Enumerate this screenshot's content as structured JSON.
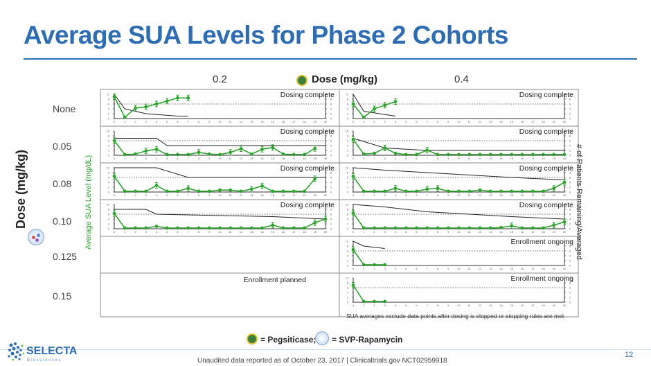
{
  "title": "Average SUA Levels for Phase 2 Cohorts",
  "header": {
    "col_left": "0.2",
    "dose_label": "Dose (mg/kg)",
    "col_right": "0.4"
  },
  "rows": [
    "None",
    "0.05",
    "0.08",
    "0.10",
    "0.125",
    "0.15"
  ],
  "y_axis_title": "Dose (mg/kg)",
  "y_axis_sub": "Average SUA Level (mg/dL)",
  "y_axis_right": "# of Patients Remaining/Averaged",
  "footnote": "SUA averages exclude data points after dosing is stopped or stopping rules are met",
  "legend": {
    "pegsiticase": "= Pegsiticase;",
    "svp": "= SVP-Rapamycin"
  },
  "logo_text": "SELECTA",
  "logo_sub": "B i o s c i e n c e s",
  "unaudited": "Unaudited data reported as of October 23, 2017 | Clinicaltrials.gov NCT02959918",
  "page_number": "12",
  "colors": {
    "title": "#2e6db4",
    "series": "#2ea32e",
    "patients": "#222222"
  },
  "chart_data": {
    "type": "line",
    "x_ticks": [
      "0",
      "1",
      "2",
      "3",
      "4",
      "5",
      "6",
      "7",
      "8",
      "9",
      "10",
      "11",
      "12",
      "13",
      "14",
      "15",
      "16",
      "17",
      "18",
      "19",
      "20"
    ],
    "xlim": [
      0,
      20
    ],
    "ylim_sua": [
      0,
      10
    ],
    "ylim_patients": [
      0,
      10
    ],
    "y_ticks": [
      "0",
      "2",
      "4",
      "6",
      "8",
      "10"
    ],
    "ref_line": 6,
    "panels": [
      {
        "row": 0,
        "col": 0,
        "status": "Dosing complete",
        "sua": [
          [
            0,
            9
          ],
          [
            1,
            0.5
          ],
          [
            2,
            4.3
          ],
          [
            3,
            4.8
          ],
          [
            4,
            6
          ],
          [
            5,
            7.2
          ],
          [
            6,
            8.5
          ],
          [
            7,
            8.5
          ]
        ],
        "patients": [
          [
            0,
            10
          ],
          [
            1,
            4
          ],
          [
            3,
            2
          ],
          [
            6,
            1
          ],
          [
            7,
            1
          ]
        ]
      },
      {
        "row": 0,
        "col": 1,
        "status": "Dosing complete",
        "sua": [
          [
            0,
            6
          ],
          [
            1,
            0.5
          ],
          [
            2,
            4
          ],
          [
            3,
            5.5
          ],
          [
            4,
            7
          ]
        ],
        "patients": [
          [
            0,
            10
          ],
          [
            1,
            3
          ],
          [
            4,
            1
          ]
        ]
      },
      {
        "row": 1,
        "col": 0,
        "status": "Dosing complete",
        "sua": [
          [
            0,
            6
          ],
          [
            1,
            0.3
          ],
          [
            2,
            0.5
          ],
          [
            3,
            1.8
          ],
          [
            4,
            2.5
          ],
          [
            5,
            0.3
          ],
          [
            6,
            0.3
          ],
          [
            7,
            0.3
          ],
          [
            8,
            1.2
          ],
          [
            9,
            0.5
          ],
          [
            10,
            0.3
          ],
          [
            11,
            1.2
          ],
          [
            12,
            2.7
          ],
          [
            13,
            0.5
          ],
          [
            14,
            2.5
          ],
          [
            15,
            3.2
          ],
          [
            16,
            0.5
          ],
          [
            17,
            0.3
          ],
          [
            18,
            0.3
          ],
          [
            19,
            2.8
          ]
        ],
        "patients": [
          [
            0,
            7
          ],
          [
            4,
            7
          ],
          [
            5,
            4
          ],
          [
            20,
            4
          ]
        ]
      },
      {
        "row": 1,
        "col": 1,
        "status": "Dosing complete",
        "sua": [
          [
            0,
            6.5
          ],
          [
            1,
            0.5
          ],
          [
            2,
            0.8
          ],
          [
            3,
            3
          ],
          [
            4,
            0.8
          ],
          [
            5,
            0.3
          ],
          [
            6,
            0.3
          ],
          [
            7,
            2.1
          ],
          [
            8,
            0.3
          ],
          [
            9,
            0.3
          ],
          [
            10,
            0.3
          ],
          [
            11,
            0.3
          ],
          [
            12,
            0.3
          ],
          [
            13,
            0.3
          ],
          [
            14,
            0.3
          ],
          [
            15,
            0.3
          ],
          [
            16,
            0.3
          ],
          [
            17,
            0.3
          ],
          [
            18,
            0.3
          ],
          [
            19,
            0.3
          ],
          [
            20,
            0.3
          ]
        ],
        "patients": [
          [
            0,
            7
          ],
          [
            3,
            3
          ],
          [
            7,
            2
          ],
          [
            20,
            2
          ]
        ]
      },
      {
        "row": 2,
        "col": 0,
        "status": "Dosing complete",
        "sua": [
          [
            0,
            6.5
          ],
          [
            1,
            0.3
          ],
          [
            2,
            0.3
          ],
          [
            3,
            0.3
          ],
          [
            4,
            2.7
          ],
          [
            5,
            0.3
          ],
          [
            6,
            0.3
          ],
          [
            7,
            1.5
          ],
          [
            8,
            0.3
          ],
          [
            9,
            0.3
          ],
          [
            10,
            0.8
          ],
          [
            11,
            0.8
          ],
          [
            12,
            0.3
          ],
          [
            13,
            1.2
          ],
          [
            14,
            2.5
          ],
          [
            15,
            0.3
          ],
          [
            16,
            0.3
          ],
          [
            17,
            0.3
          ],
          [
            18,
            0.3
          ],
          [
            19,
            5.5
          ]
        ],
        "patients": [
          [
            0,
            10
          ],
          [
            4,
            10
          ],
          [
            7,
            6
          ],
          [
            20,
            6
          ]
        ]
      },
      {
        "row": 2,
        "col": 1,
        "status": "Dosing complete",
        "sua": [
          [
            0,
            6.5
          ],
          [
            1,
            0.3
          ],
          [
            2,
            0.3
          ],
          [
            3,
            0.3
          ],
          [
            4,
            1.5
          ],
          [
            5,
            0.3
          ],
          [
            6,
            0.3
          ],
          [
            7,
            1.2
          ],
          [
            8,
            1.5
          ],
          [
            9,
            0.3
          ],
          [
            10,
            0.3
          ],
          [
            11,
            0.3
          ],
          [
            12,
            0.8
          ],
          [
            13,
            0.3
          ],
          [
            14,
            0.3
          ],
          [
            15,
            0.3
          ],
          [
            16,
            0.3
          ],
          [
            17,
            0.3
          ],
          [
            18,
            0.3
          ],
          [
            19,
            1.5
          ],
          [
            20,
            4
          ]
        ],
        "patients": [
          [
            0,
            10
          ],
          [
            3,
            9
          ],
          [
            7,
            8
          ],
          [
            11,
            7
          ],
          [
            15,
            6
          ],
          [
            20,
            5
          ]
        ]
      },
      {
        "row": 3,
        "col": 0,
        "status": "Dosing complete",
        "sua": [
          [
            0,
            6.3
          ],
          [
            1,
            0.3
          ],
          [
            2,
            0.3
          ],
          [
            3,
            0.3
          ],
          [
            4,
            1
          ],
          [
            5,
            0.3
          ],
          [
            6,
            0.3
          ],
          [
            7,
            0.3
          ],
          [
            8,
            0.3
          ],
          [
            9,
            0.3
          ],
          [
            10,
            0.3
          ],
          [
            11,
            0.3
          ],
          [
            12,
            0.3
          ],
          [
            13,
            0.3
          ],
          [
            14,
            0.3
          ],
          [
            15,
            1.5
          ],
          [
            16,
            0.3
          ],
          [
            17,
            0.3
          ],
          [
            18,
            0.3
          ],
          [
            19,
            2.5
          ],
          [
            20,
            4
          ]
        ],
        "patients": [
          [
            0,
            8
          ],
          [
            3,
            8
          ],
          [
            4,
            6
          ],
          [
            15,
            5
          ],
          [
            20,
            4
          ]
        ]
      },
      {
        "row": 3,
        "col": 1,
        "status": "Dosing complete",
        "sua": [
          [
            0,
            6.5
          ],
          [
            1,
            0.3
          ],
          [
            2,
            0.3
          ],
          [
            3,
            0.3
          ],
          [
            4,
            0.3
          ],
          [
            5,
            0.3
          ],
          [
            6,
            0.3
          ],
          [
            7,
            0.3
          ],
          [
            8,
            0.3
          ],
          [
            9,
            0.3
          ],
          [
            10,
            0.3
          ],
          [
            11,
            0.3
          ],
          [
            12,
            0.3
          ],
          [
            13,
            0.3
          ],
          [
            14,
            0.5
          ],
          [
            15,
            1.2
          ],
          [
            16,
            0.3
          ],
          [
            17,
            0.3
          ],
          [
            18,
            0.3
          ],
          [
            19,
            1.5
          ],
          [
            20,
            2.8
          ]
        ],
        "patients": [
          [
            0,
            10
          ],
          [
            3,
            9
          ],
          [
            7,
            7
          ],
          [
            11,
            6
          ],
          [
            15,
            5
          ],
          [
            20,
            4
          ]
        ]
      },
      {
        "row": 4,
        "col": 1,
        "status": "Enrollment ongoing",
        "sua": [
          [
            0,
            6.5
          ],
          [
            1,
            0.3
          ],
          [
            2,
            0.3
          ],
          [
            3,
            0.3
          ]
        ],
        "patients": [
          [
            0,
            10
          ],
          [
            1,
            8
          ],
          [
            3,
            7
          ]
        ]
      },
      {
        "row": 5,
        "col": 0,
        "status": "Enrollment planned",
        "sua": [],
        "patients": [],
        "empty": true
      },
      {
        "row": 5,
        "col": 1,
        "status": "Enrollment ongoing",
        "sua": [
          [
            0,
            7
          ],
          [
            1,
            0.3
          ],
          [
            2,
            0.3
          ],
          [
            3,
            0.3
          ]
        ],
        "patients": []
      }
    ]
  }
}
